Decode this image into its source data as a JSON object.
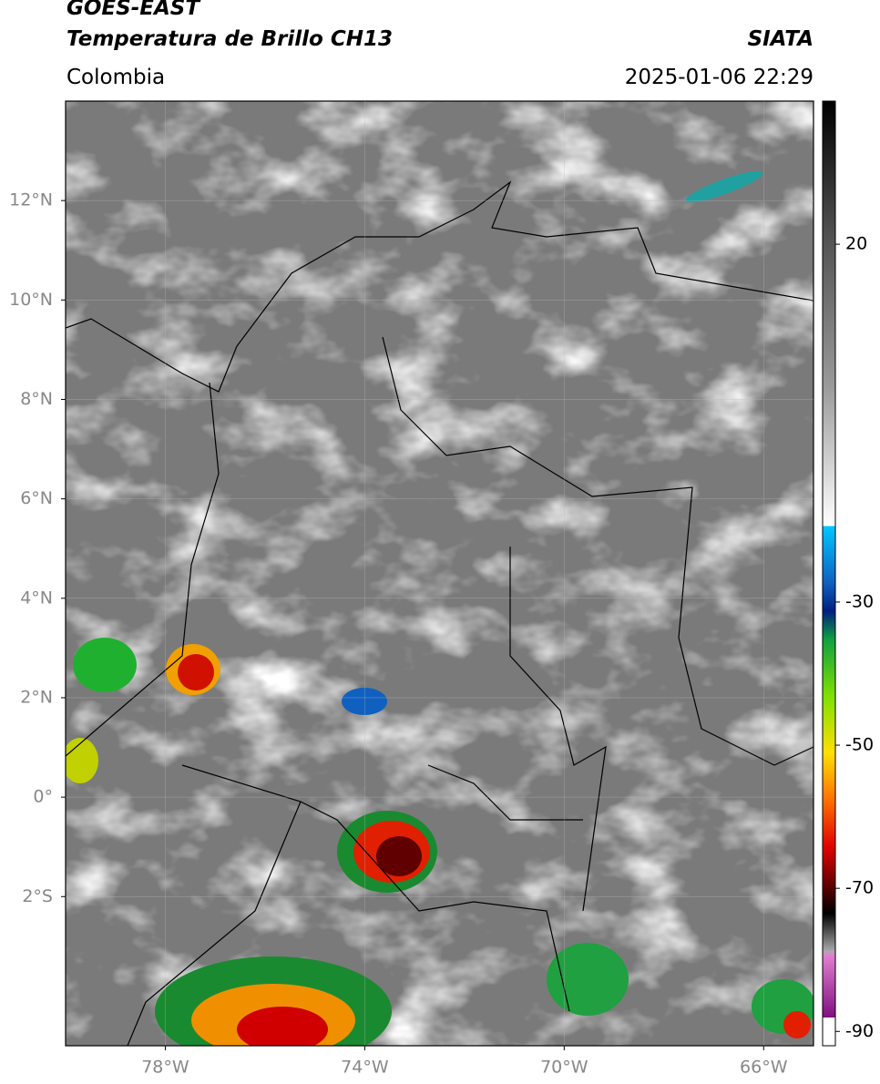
{
  "header": {
    "title": "GOES-EAST",
    "subtitle": "Temperatura de Brillo CH13",
    "source": "SIATA",
    "region": "Colombia",
    "datetime": "2025-01-06 22:29"
  },
  "map": {
    "xlim": [
      -80,
      -65
    ],
    "ylim": [
      -5,
      14
    ],
    "xticks": [
      {
        "value": -78,
        "label": "78°W"
      },
      {
        "value": -74,
        "label": "74°W"
      },
      {
        "value": -70,
        "label": "70°W"
      },
      {
        "value": -66,
        "label": "66°W"
      }
    ],
    "yticks": [
      {
        "value": 12,
        "label": "12°N"
      },
      {
        "value": 10,
        "label": "10°N"
      },
      {
        "value": 8,
        "label": "8°N"
      },
      {
        "value": 6,
        "label": "6°N"
      },
      {
        "value": 4,
        "label": "4°N"
      },
      {
        "value": 2,
        "label": "2°N"
      },
      {
        "value": 0,
        "label": "0°"
      },
      {
        "value": -2,
        "label": "2°S"
      }
    ]
  },
  "colorbar": {
    "lim": [
      40,
      -92
    ],
    "ticks": [
      20,
      -30,
      -50,
      -70,
      -90
    ]
  }
}
